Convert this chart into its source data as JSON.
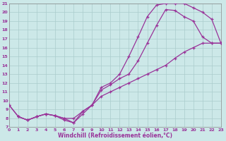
{
  "xlabel": "Windchill (Refroidissement éolien,°C)",
  "background_color": "#cce8e8",
  "grid_color": "#aacccc",
  "line_color": "#993399",
  "xlim": [
    0,
    23
  ],
  "ylim": [
    7,
    21
  ],
  "xticks": [
    0,
    1,
    2,
    3,
    4,
    5,
    6,
    7,
    8,
    9,
    10,
    11,
    12,
    13,
    14,
    15,
    16,
    17,
    18,
    19,
    20,
    21,
    22,
    23
  ],
  "yticks": [
    7,
    8,
    9,
    10,
    11,
    12,
    13,
    14,
    15,
    16,
    17,
    18,
    19,
    20,
    21
  ],
  "curve_a_x": [
    0,
    1,
    2,
    3,
    4,
    5,
    6,
    7,
    8,
    9,
    10,
    11,
    12,
    13,
    14,
    15,
    16,
    17,
    18,
    19,
    20,
    21,
    22,
    23
  ],
  "curve_a_y": [
    9.5,
    8.2,
    7.8,
    8.2,
    8.5,
    8.3,
    8.0,
    8.0,
    8.8,
    9.5,
    10.5,
    11.0,
    11.5,
    12.0,
    12.5,
    13.0,
    13.5,
    14.0,
    14.8,
    15.5,
    16.0,
    16.5,
    16.5,
    16.5
  ],
  "curve_b_x": [
    0,
    1,
    2,
    3,
    4,
    5,
    6,
    7,
    8,
    9,
    10,
    11,
    12,
    13,
    14,
    15,
    16,
    17,
    18,
    19,
    20,
    21,
    22,
    23
  ],
  "curve_b_y": [
    9.5,
    8.2,
    7.8,
    8.2,
    8.5,
    8.3,
    8.0,
    7.5,
    8.5,
    9.5,
    11.5,
    12.0,
    13.0,
    15.0,
    17.2,
    19.5,
    20.8,
    21.0,
    21.0,
    21.0,
    20.5,
    20.0,
    19.2,
    16.5
  ],
  "curve_c_x": [
    1,
    2,
    3,
    4,
    5,
    6,
    7,
    8,
    9,
    10,
    11,
    12,
    13,
    14,
    15,
    16,
    17,
    18,
    19,
    20,
    21,
    22,
    23
  ],
  "curve_c_y": [
    8.2,
    7.8,
    8.2,
    8.5,
    8.3,
    7.8,
    7.5,
    8.8,
    9.5,
    11.2,
    11.8,
    12.5,
    13.0,
    14.5,
    16.5,
    18.5,
    20.3,
    20.2,
    19.5,
    19.0,
    17.2,
    16.5,
    16.5
  ]
}
